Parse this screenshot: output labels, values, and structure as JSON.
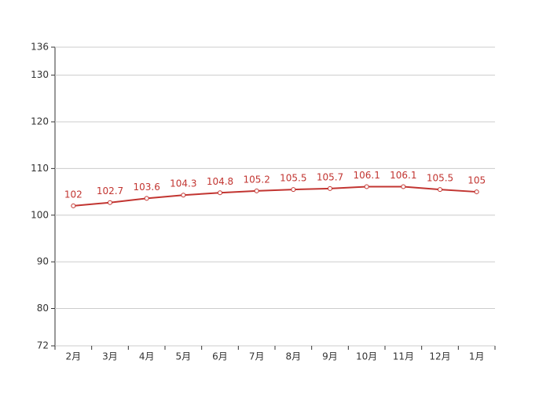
{
  "chart_data": {
    "type": "line",
    "categories": [
      "2月",
      "3月",
      "4月",
      "5月",
      "6月",
      "7月",
      "8月",
      "9月",
      "10月",
      "11月",
      "12月",
      "1月"
    ],
    "values": [
      102,
      102.7,
      103.6,
      104.3,
      104.8,
      105.2,
      105.5,
      105.7,
      106.1,
      106.1,
      105.5,
      105
    ],
    "color": "#c23531",
    "ylim": [
      72,
      136
    ],
    "yticks": [
      72,
      80,
      90,
      100,
      110,
      120,
      130,
      136
    ],
    "grid": true
  }
}
